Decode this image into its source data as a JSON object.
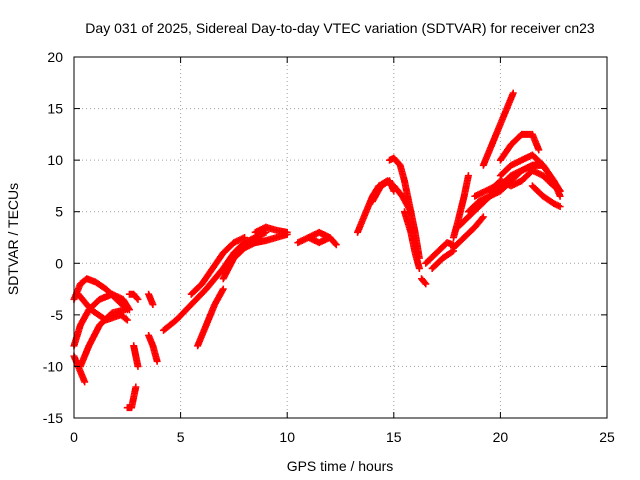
{
  "chart_data": {
    "type": "scatter",
    "title": "Day 031 of 2025, Sidereal Day-to-day VTEC variation (SDTVAR) for receiver cn23",
    "xlabel": "GPS time / hours",
    "ylabel": "SDTVAR / TECUs",
    "xlim": [
      0,
      25
    ],
    "ylim": [
      -15,
      20
    ],
    "xticks": [
      0,
      5,
      10,
      15,
      20,
      25
    ],
    "yticks": [
      -15,
      -10,
      -5,
      0,
      5,
      10,
      15,
      20
    ],
    "grid": true,
    "marker": "+",
    "color": "#ff0000",
    "series": [
      {
        "name": "trace-a",
        "x": [
          0.0,
          0.3,
          0.6,
          1.0,
          1.5,
          2.0,
          2.5
        ],
        "y": [
          -3.5,
          -2.0,
          -1.5,
          -1.8,
          -2.5,
          -3.5,
          -4.5
        ]
      },
      {
        "name": "trace-b",
        "x": [
          0.0,
          0.3,
          0.7,
          1.2,
          1.8,
          2.3,
          2.6
        ],
        "y": [
          -8.0,
          -6.0,
          -4.5,
          -3.5,
          -3.0,
          -3.5,
          -4.5
        ]
      },
      {
        "name": "trace-c",
        "x": [
          0.0,
          0.3,
          0.5
        ],
        "y": [
          -9.0,
          -10.5,
          -11.5
        ]
      },
      {
        "name": "trace-d",
        "x": [
          0.3,
          0.7,
          1.2,
          1.8,
          2.4
        ],
        "y": [
          -10.0,
          -8.0,
          -6.0,
          -4.8,
          -4.5
        ]
      },
      {
        "name": "trace-e",
        "x": [
          0.2,
          0.8,
          1.5,
          2.2,
          2.5
        ],
        "y": [
          -3.0,
          -4.5,
          -5.5,
          -5.0,
          -5.5
        ]
      },
      {
        "name": "trace-f",
        "x": [
          2.6,
          2.8,
          3.0
        ],
        "y": [
          -3.0,
          -3.0,
          -3.5
        ]
      },
      {
        "name": "trace-g",
        "x": [
          2.5,
          2.7,
          2.9
        ],
        "y": [
          -14.0,
          -14.0,
          -12.0
        ]
      },
      {
        "name": "trace-h",
        "x": [
          2.8,
          2.9,
          3.0
        ],
        "y": [
          -8.0,
          -9.0,
          -10.0
        ]
      },
      {
        "name": "trace-i",
        "x": [
          3.5,
          3.7,
          3.9
        ],
        "y": [
          -7.0,
          -8.0,
          -9.5
        ]
      },
      {
        "name": "trace-j",
        "x": [
          3.5,
          3.7
        ],
        "y": [
          -3.0,
          -4.0
        ]
      },
      {
        "name": "trace-k",
        "x": [
          4.2,
          4.8,
          5.5,
          6.2,
          7.0,
          7.5,
          8.0,
          8.5,
          9.0
        ],
        "y": [
          -6.5,
          -5.5,
          -4.0,
          -2.5,
          -0.5,
          1.0,
          2.0,
          2.5,
          3.0
        ]
      },
      {
        "name": "trace-l",
        "x": [
          5.5,
          6.0,
          6.5,
          7.0,
          7.5,
          8.0
        ],
        "y": [
          -3.0,
          -2.0,
          -0.5,
          1.0,
          2.0,
          2.5
        ]
      },
      {
        "name": "trace-m",
        "x": [
          5.8,
          6.2,
          6.6,
          7.0
        ],
        "y": [
          -8.0,
          -6.0,
          -4.0,
          -2.5
        ]
      },
      {
        "name": "trace-n",
        "x": [
          7.0,
          7.5,
          8.0,
          8.5,
          9.0,
          9.5,
          10.0
        ],
        "y": [
          -1.5,
          0.5,
          1.5,
          2.0,
          2.2,
          2.5,
          2.8
        ]
      },
      {
        "name": "trace-o",
        "x": [
          8.5,
          9.0,
          9.5,
          10.0
        ],
        "y": [
          3.0,
          3.5,
          3.2,
          3.0
        ]
      },
      {
        "name": "trace-p",
        "x": [
          11.0,
          11.5,
          12.0,
          12.3
        ],
        "y": [
          2.5,
          3.0,
          2.5,
          1.8
        ]
      },
      {
        "name": "trace-q",
        "x": [
          10.5,
          11.0,
          11.5,
          12.0
        ],
        "y": [
          2.0,
          2.5,
          2.0,
          2.5
        ]
      },
      {
        "name": "trace-r",
        "x": [
          13.3,
          13.6,
          14.0,
          14.3,
          14.7,
          15.0,
          15.4,
          15.8
        ],
        "y": [
          3.0,
          4.5,
          6.5,
          7.5,
          8.0,
          7.5,
          6.5,
          5.0
        ]
      },
      {
        "name": "trace-s",
        "x": [
          14.0,
          14.4,
          14.8,
          15.0
        ],
        "y": [
          6.0,
          7.5,
          8.0,
          7.0
        ]
      },
      {
        "name": "trace-t",
        "x": [
          14.8,
          15.0,
          15.3,
          15.5,
          15.7,
          16.0,
          16.2
        ],
        "y": [
          10.0,
          10.2,
          9.5,
          8.0,
          6.0,
          3.0,
          0.5
        ]
      },
      {
        "name": "trace-u",
        "x": [
          15.5,
          15.8,
          16.0,
          16.2
        ],
        "y": [
          5.0,
          3.0,
          1.0,
          -0.5
        ]
      },
      {
        "name": "trace-v",
        "x": [
          16.3,
          16.5
        ],
        "y": [
          -1.5,
          -2.0
        ]
      },
      {
        "name": "trace-w",
        "x": [
          16.5,
          17.0,
          17.5,
          17.8
        ],
        "y": [
          0.0,
          1.0,
          2.0,
          1.8
        ]
      },
      {
        "name": "trace-x",
        "x": [
          16.8,
          17.3,
          17.8
        ],
        "y": [
          -0.5,
          0.5,
          1.2
        ]
      },
      {
        "name": "trace-y",
        "x": [
          17.8,
          18.0,
          18.3,
          18.5
        ],
        "y": [
          2.5,
          4.0,
          6.5,
          8.5
        ]
      },
      {
        "name": "trace-z",
        "x": [
          17.8,
          18.3,
          18.8,
          19.2
        ],
        "y": [
          1.5,
          2.5,
          3.5,
          4.5
        ]
      },
      {
        "name": "trace-aa",
        "x": [
          18.0,
          18.5,
          19.0,
          19.5,
          20.0,
          20.5,
          21.0,
          21.5,
          22.0
        ],
        "y": [
          3.5,
          4.5,
          5.5,
          6.5,
          7.5,
          8.5,
          9.0,
          9.5,
          9.5
        ]
      },
      {
        "name": "trace-ab",
        "x": [
          18.5,
          19.0,
          19.5,
          20.0,
          20.5,
          21.0,
          21.5,
          22.0,
          22.5,
          22.8
        ],
        "y": [
          5.0,
          6.0,
          6.5,
          7.0,
          8.0,
          9.0,
          9.5,
          9.5,
          8.0,
          7.0
        ]
      },
      {
        "name": "trace-ac",
        "x": [
          18.8,
          19.3,
          19.8,
          20.3,
          20.7
        ],
        "y": [
          6.5,
          7.0,
          7.5,
          8.0,
          8.5
        ]
      },
      {
        "name": "trace-ad",
        "x": [
          19.2,
          19.6,
          20.0,
          20.3,
          20.6
        ],
        "y": [
          9.5,
          11.5,
          13.5,
          15.0,
          16.5
        ]
      },
      {
        "name": "trace-ae",
        "x": [
          20.0,
          20.5,
          21.0,
          21.5,
          21.8
        ],
        "y": [
          10.0,
          11.5,
          12.5,
          12.5,
          11.0
        ]
      },
      {
        "name": "trace-af",
        "x": [
          20.0,
          20.5,
          21.0,
          21.5,
          22.0,
          22.5,
          22.8
        ],
        "y": [
          8.5,
          9.5,
          10.0,
          10.5,
          9.5,
          8.0,
          6.5
        ]
      },
      {
        "name": "trace-ag",
        "x": [
          21.0,
          21.5,
          22.0,
          22.5,
          22.8
        ],
        "y": [
          8.0,
          9.0,
          8.5,
          7.5,
          7.0
        ]
      },
      {
        "name": "trace-ah",
        "x": [
          21.5,
          22.0,
          22.5,
          22.8
        ],
        "y": [
          7.5,
          6.5,
          5.8,
          5.5
        ]
      },
      {
        "name": "trace-ai",
        "x": [
          19.5,
          20.0,
          20.5,
          21.0
        ],
        "y": [
          7.0,
          8.0,
          7.5,
          8.0
        ]
      }
    ]
  }
}
